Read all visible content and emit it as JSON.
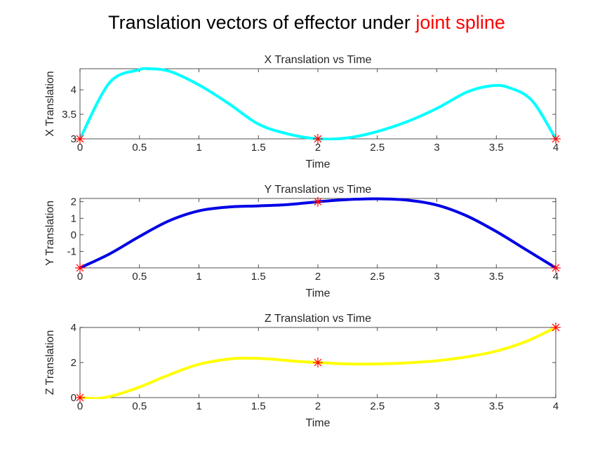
{
  "figure": {
    "title_main": "Translation vectors of effector under ",
    "title_highlight": "joint spline",
    "title_highlight_color": "#ff0000"
  },
  "chart_data": [
    {
      "type": "line",
      "title": "X Translation vs Time",
      "xlabel": "Time",
      "ylabel": "X Translation",
      "xlim": [
        0,
        4
      ],
      "ylim": [
        3,
        4.43
      ],
      "xticks": [
        "0",
        "0.5",
        "1",
        "1.5",
        "2",
        "2.5",
        "3",
        "3.5",
        "4"
      ],
      "yticks": [
        "3",
        "3.5",
        "4"
      ],
      "line_color": "#00ffff",
      "marker_color": "#ff0000",
      "x": [
        0,
        0.25,
        0.5,
        0.57,
        0.75,
        1,
        1.25,
        1.5,
        1.75,
        2,
        2.25,
        2.5,
        2.75,
        3,
        3.25,
        3.45,
        3.6,
        3.8,
        4
      ],
      "y": [
        3,
        4.15,
        4.41,
        4.43,
        4.38,
        4.1,
        3.72,
        3.3,
        3.1,
        3,
        3.02,
        3.15,
        3.35,
        3.62,
        3.95,
        4.08,
        4.05,
        3.78,
        3
      ],
      "markers": {
        "x": [
          0,
          2,
          4
        ],
        "y": [
          3,
          3,
          3
        ]
      }
    },
    {
      "type": "line",
      "title": "Y Translation vs Time",
      "xlabel": "Time",
      "ylabel": "Y Translation",
      "xlim": [
        0,
        4
      ],
      "ylim": [
        -2,
        2.2
      ],
      "xticks": [
        "0",
        "0.5",
        "1",
        "1.5",
        "2",
        "2.5",
        "3",
        "3.5",
        "4"
      ],
      "yticks": [
        "-1",
        "0",
        "1",
        "2"
      ],
      "line_color": "#0000e6",
      "marker_color": "#ff0000",
      "x": [
        0,
        0.25,
        0.5,
        0.75,
        1,
        1.25,
        1.5,
        1.75,
        2,
        2.25,
        2.5,
        2.75,
        3,
        3.25,
        3.5,
        3.75,
        4
      ],
      "y": [
        -2,
        -1.15,
        -0.1,
        0.85,
        1.45,
        1.68,
        1.75,
        1.83,
        2,
        2.13,
        2.18,
        2.1,
        1.8,
        1.15,
        0.2,
        -0.9,
        -2
      ],
      "markers": {
        "x": [
          0,
          2,
          4
        ],
        "y": [
          -2,
          2,
          -2
        ]
      }
    },
    {
      "type": "line",
      "title": "Z Translation vs Time",
      "xlabel": "Time",
      "ylabel": "Z Translation",
      "xlim": [
        0,
        4
      ],
      "ylim": [
        0,
        4
      ],
      "xticks": [
        "0",
        "0.5",
        "1",
        "1.5",
        "2",
        "2.5",
        "3",
        "3.5",
        "4"
      ],
      "yticks": [
        "0",
        "2",
        "4"
      ],
      "line_color": "#ffff00",
      "marker_color": "#ff0000",
      "x": [
        0,
        0.15,
        0.3,
        0.5,
        0.75,
        1,
        1.25,
        1.4,
        1.6,
        1.8,
        2,
        2.25,
        2.5,
        2.75,
        3,
        3.25,
        3.5,
        3.75,
        4
      ],
      "y": [
        0,
        -0.05,
        0.15,
        0.6,
        1.3,
        1.9,
        2.2,
        2.25,
        2.2,
        2.08,
        2,
        1.92,
        1.92,
        1.98,
        2.1,
        2.32,
        2.65,
        3.2,
        4
      ],
      "markers": {
        "x": [
          0,
          2,
          4
        ],
        "y": [
          0,
          2,
          4
        ]
      }
    }
  ]
}
